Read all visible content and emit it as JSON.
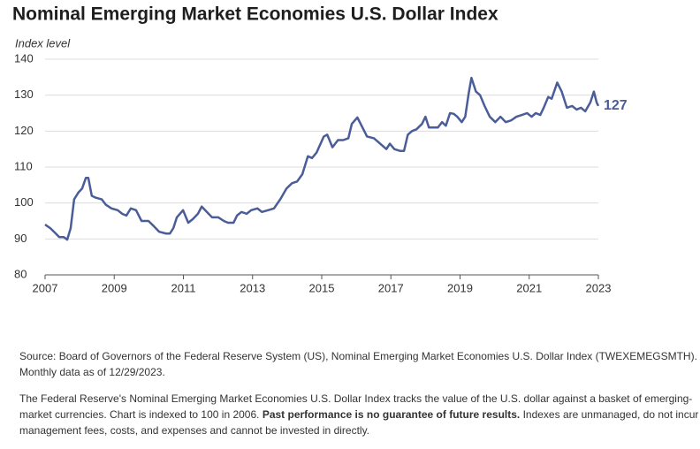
{
  "chart_data": {
    "type": "line",
    "title": "Nominal Emerging Market Economies U.S. Dollar Index",
    "y_label": "Index level",
    "color": "#4a5d98",
    "grid": true,
    "xlim": [
      2007,
      2023
    ],
    "xticks": [
      2007,
      2009,
      2011,
      2013,
      2015,
      2017,
      2019,
      2021,
      2023
    ],
    "ylim": [
      80,
      140
    ],
    "yticks": [
      80,
      90,
      100,
      110,
      120,
      130,
      140
    ],
    "x": [
      2007.0,
      2007.15,
      2007.31,
      2007.41,
      2007.54,
      2007.64,
      2007.74,
      2007.84,
      2007.97,
      2008.07,
      2008.18,
      2008.25,
      2008.35,
      2008.46,
      2008.64,
      2008.76,
      2008.92,
      2009.1,
      2009.23,
      2009.35,
      2009.48,
      2009.63,
      2009.79,
      2009.99,
      2010.15,
      2010.3,
      2010.5,
      2010.61,
      2010.71,
      2010.81,
      2010.99,
      2011.14,
      2011.27,
      2011.42,
      2011.53,
      2011.68,
      2011.83,
      2012.01,
      2012.17,
      2012.29,
      2012.45,
      2012.55,
      2012.68,
      2012.83,
      2012.96,
      2013.14,
      2013.27,
      2013.45,
      2013.62,
      2013.8,
      2013.98,
      2014.14,
      2014.29,
      2014.44,
      2014.6,
      2014.72,
      2014.85,
      2015.06,
      2015.16,
      2015.31,
      2015.47,
      2015.62,
      2015.77,
      2015.87,
      2016.03,
      2016.18,
      2016.31,
      2016.51,
      2016.69,
      2016.87,
      2016.97,
      2017.1,
      2017.26,
      2017.38,
      2017.49,
      2017.61,
      2017.74,
      2017.9,
      2018.0,
      2018.1,
      2018.23,
      2018.36,
      2018.48,
      2018.59,
      2018.71,
      2018.82,
      2018.92,
      2019.05,
      2019.15,
      2019.25,
      2019.33,
      2019.46,
      2019.58,
      2019.71,
      2019.86,
      2020.02,
      2020.17,
      2020.32,
      2020.48,
      2020.63,
      2020.79,
      2020.94,
      2021.07,
      2021.19,
      2021.32,
      2021.42,
      2021.55,
      2021.65,
      2021.81,
      2021.94,
      2022.09,
      2022.24,
      2022.37,
      2022.5,
      2022.62,
      2022.77,
      2022.87,
      2022.95,
      2023.0
    ],
    "values": [
      94,
      93,
      91.5,
      90.5,
      90.5,
      89.8,
      93,
      101,
      103,
      104,
      107,
      107,
      102,
      101.5,
      101,
      99.5,
      98.5,
      98,
      97,
      96.5,
      98.5,
      98,
      95,
      95,
      93.5,
      92,
      91.5,
      91.5,
      93,
      96,
      98,
      94.5,
      95.5,
      97,
      99,
      97.5,
      96,
      96,
      95,
      94.5,
      94.5,
      96.5,
      97.5,
      97,
      98,
      98.5,
      97.5,
      98,
      98.5,
      101,
      104,
      105.5,
      106,
      108,
      113,
      112.5,
      114,
      118.5,
      119,
      115.5,
      117.5,
      117.5,
      118,
      122,
      123.8,
      121,
      118.5,
      118,
      116.5,
      115,
      116.5,
      115,
      114.5,
      114.5,
      119,
      120,
      120.5,
      122,
      124,
      121,
      121,
      121,
      122.5,
      121.5,
      125,
      124.8,
      124,
      122.5,
      124,
      130.5,
      134.8,
      131,
      130,
      127,
      124,
      122.5,
      124,
      122.5,
      123,
      124,
      124.5,
      125,
      124,
      125,
      124.5,
      126.5,
      129.5,
      129,
      133.5,
      131,
      126.5,
      127,
      126,
      126.5,
      125.5,
      128,
      131,
      128,
      127
    ]
  },
  "footer": {
    "source": "Source: Board of Governors of the Federal Reserve System (US), Nominal Emerging Market Economies U.S. Dollar Index (TWEXEMEGSMTH). Monthly data as of 12/29/2023.",
    "description": "The Federal Reserve's Nominal Emerging Market Economies U.S. Dollar Index tracks the value of the U.S. dollar against a basket of emerging-market currencies. Chart is indexed to 100 in 2006.",
    "disclaimer": "Past performance is no guarantee of future results.",
    "note": "Indexes are unmanaged, do not incur management fees, costs, and expenses and cannot be invested in directly."
  }
}
